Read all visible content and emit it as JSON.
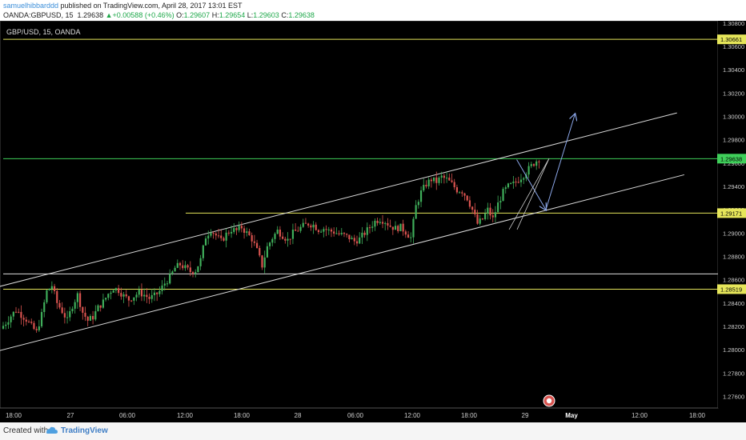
{
  "header": {
    "author": "samuelhibbarddd",
    "published": " published on TradingView.com, April 28, 2017 13:01 EST",
    "symbol": "OANDA:GBPUSD, 15",
    "price": "1.29638",
    "change_arrow": "▲",
    "change": "+0.00588 (+0.46%)",
    "o_label": "O:",
    "o_value": "1.29607",
    "h_label": "H:",
    "h_value": "1.29654",
    "l_label": "L:",
    "l_value": "1.29603",
    "c_label": "C:",
    "c_value": "1.29638"
  },
  "chart_data": {
    "type": "candlestick",
    "title": "GBP/USD, 15, OANDA",
    "xlabel": "",
    "ylabel": "",
    "ylim": [
      1.275,
      1.3082
    ],
    "x_tick_labels": [
      "18:00",
      "27",
      "06:00",
      "12:00",
      "18:00",
      "28",
      "06:00",
      "12:00",
      "18:00",
      "29",
      "May",
      "12:00",
      "18:00"
    ],
    "y_tick_labels": [
      "1.30800",
      "1.30600",
      "1.30400",
      "1.30200",
      "1.30000",
      "1.29800",
      "1.29600",
      "1.29400",
      "1.29200",
      "1.29000",
      "1.28800",
      "1.28600",
      "1.28400",
      "1.28200",
      "1.28000",
      "1.27800",
      "1.27600"
    ],
    "grid": false,
    "price_path": [
      [
        0,
        1.2818
      ],
      [
        1,
        1.2823
      ],
      [
        2,
        1.2829
      ],
      [
        3,
        1.2834
      ],
      [
        4,
        1.283
      ],
      [
        5,
        1.2826
      ],
      [
        6,
        1.282
      ],
      [
        7,
        1.2815
      ],
      [
        8,
        1.283
      ],
      [
        9,
        1.285
      ],
      [
        10,
        1.2855
      ],
      [
        11,
        1.284
      ],
      [
        12,
        1.2833
      ],
      [
        13,
        1.2825
      ],
      [
        14,
        1.2838
      ],
      [
        15,
        1.2847
      ],
      [
        16,
        1.2832
      ],
      [
        17,
        1.2825
      ],
      [
        18,
        1.2828
      ],
      [
        19,
        1.2836
      ],
      [
        20,
        1.2841
      ],
      [
        21,
        1.2848
      ],
      [
        22,
        1.2853
      ],
      [
        23,
        1.2851
      ],
      [
        24,
        1.2846
      ],
      [
        25,
        1.2843
      ],
      [
        26,
        1.2846
      ],
      [
        27,
        1.2849
      ],
      [
        28,
        1.2847
      ],
      [
        29,
        1.2844
      ],
      [
        30,
        1.2846
      ],
      [
        31,
        1.285
      ],
      [
        32,
        1.2857
      ],
      [
        33,
        1.2862
      ],
      [
        34,
        1.287
      ],
      [
        35,
        1.2873
      ],
      [
        36,
        1.287
      ],
      [
        37,
        1.2867
      ],
      [
        38,
        1.2868
      ],
      [
        39,
        1.2877
      ],
      [
        40,
        1.2897
      ],
      [
        41,
        1.2903
      ],
      [
        42,
        1.2898
      ],
      [
        43,
        1.2893
      ],
      [
        44,
        1.2899
      ],
      [
        45,
        1.2903
      ],
      [
        46,
        1.2902
      ],
      [
        47,
        1.2905
      ],
      [
        48,
        1.29
      ],
      [
        49,
        1.2895
      ],
      [
        50,
        1.2885
      ],
      [
        51,
        1.2872
      ],
      [
        52,
        1.2888
      ],
      [
        53,
        1.2896
      ],
      [
        54,
        1.2902
      ],
      [
        55,
        1.2898
      ],
      [
        56,
        1.2894
      ],
      [
        57,
        1.29
      ],
      [
        58,
        1.2903
      ],
      [
        59,
        1.2906
      ],
      [
        60,
        1.2908
      ],
      [
        61,
        1.2907
      ],
      [
        62,
        1.2903
      ],
      [
        63,
        1.2904
      ],
      [
        64,
        1.2902
      ],
      [
        65,
        1.2901
      ],
      [
        66,
        1.2899
      ],
      [
        67,
        1.2898
      ],
      [
        68,
        1.2896
      ],
      [
        69,
        1.2893
      ],
      [
        70,
        1.2895
      ],
      [
        71,
        1.29
      ],
      [
        72,
        1.2905
      ],
      [
        73,
        1.291
      ],
      [
        74,
        1.2912
      ],
      [
        75,
        1.291
      ],
      [
        76,
        1.2906
      ],
      [
        77,
        1.2904
      ],
      [
        78,
        1.2905
      ],
      [
        79,
        1.2901
      ],
      [
        80,
        1.2896
      ],
      [
        81,
        1.2923
      ],
      [
        82,
        1.2935
      ],
      [
        83,
        1.2942
      ],
      [
        84,
        1.2946
      ],
      [
        85,
        1.2944
      ],
      [
        86,
        1.2948
      ],
      [
        87,
        1.2946
      ],
      [
        88,
        1.2942
      ],
      [
        89,
        1.2937
      ],
      [
        90,
        1.2936
      ],
      [
        91,
        1.293
      ],
      [
        92,
        1.292
      ],
      [
        93,
        1.2908
      ],
      [
        94,
        1.2912
      ],
      [
        95,
        1.292
      ],
      [
        96,
        1.2912
      ],
      [
        97,
        1.2925
      ],
      [
        98,
        1.2935
      ],
      [
        99,
        1.294
      ],
      [
        100,
        1.2942
      ],
      [
        101,
        1.2946
      ],
      [
        102,
        1.295
      ],
      [
        103,
        1.2955
      ],
      [
        104,
        1.296
      ],
      [
        105,
        1.2964
      ]
    ],
    "horizontal_levels": [
      {
        "price": 1.30661,
        "label": "1.30661",
        "color": "#e6e65a"
      },
      {
        "price": 1.29638,
        "label": "1.29638",
        "color": "#3fcf5a"
      },
      {
        "price": 1.29171,
        "label": "1.29171",
        "color": "#e6e65a"
      },
      {
        "price": 1.2865,
        "label": "",
        "color": "#dddddd"
      },
      {
        "price": 1.28519,
        "label": "1.28519",
        "color": "#e6e65a"
      }
    ],
    "channel": {
      "upper": [
        [
          -5,
          1.2851
        ],
        [
          185,
          1.3003
        ]
      ],
      "lower": [
        [
          -5,
          1.2796
        ],
        [
          187,
          1.295
        ]
      ]
    },
    "projection_arrows": [
      [
        141,
        1.2963
      ],
      [
        149,
        1.292
      ],
      [
        157,
        1.3002
      ]
    ],
    "colors": {
      "up": "#3fae5a",
      "down": "#d9534f",
      "background": "#000000",
      "axis_text": "#cccccc",
      "arrow": "#8aa5e6"
    }
  },
  "footer": {
    "created_with": "Created with",
    "brand": "TradingView"
  }
}
